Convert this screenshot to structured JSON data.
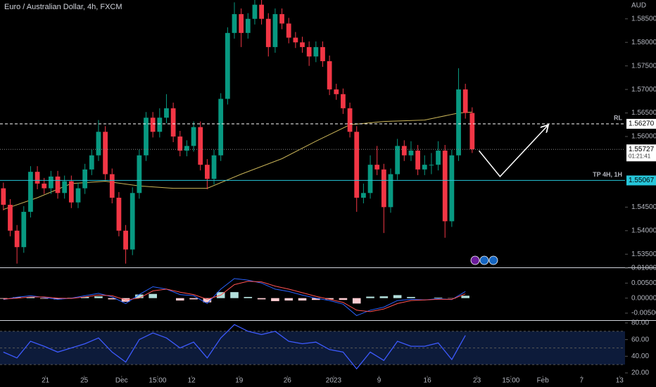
{
  "chart_data": [
    {
      "type": "candlestick",
      "title": "Euro / Australian Dollar, 4h, FXCM",
      "currency": "AUD",
      "up_color": "#089981",
      "down_color": "#f23645",
      "open": [
        1.549,
        1.5455,
        1.54,
        1.5365,
        1.544,
        1.5525,
        1.55,
        1.549,
        1.5515,
        1.548,
        1.5505,
        1.546,
        1.549,
        1.553,
        1.556,
        1.561,
        1.552,
        1.547,
        1.54,
        1.536,
        1.548,
        1.556,
        1.564,
        1.561,
        1.564,
        1.566,
        1.56,
        1.557,
        1.558,
        1.562,
        1.554,
        1.551,
        1.556,
        1.568,
        1.582,
        1.586,
        1.582,
        1.585,
        1.588,
        1.585,
        1.579,
        1.586,
        1.584,
        1.581,
        1.58,
        1.579,
        1.577,
        1.579,
        1.576,
        1.57,
        1.569,
        1.566,
        1.561,
        1.547,
        1.548,
        1.554,
        1.553,
        1.545,
        1.552,
        1.558,
        1.556,
        1.557,
        1.553,
        1.554,
        1.554,
        1.557,
        1.542,
        1.556,
        1.57,
        1.565
      ],
      "high": [
        1.5502,
        1.5467,
        1.5412,
        1.5452,
        1.5537,
        1.5537,
        1.5512,
        1.5527,
        1.5527,
        1.5517,
        1.5517,
        1.5502,
        1.5542,
        1.5572,
        1.5635,
        1.5622,
        1.5532,
        1.5482,
        1.5412,
        1.5492,
        1.5572,
        1.5652,
        1.5652,
        1.566,
        1.569,
        1.5672,
        1.5612,
        1.5592,
        1.5632,
        1.5632,
        1.5552,
        1.5572,
        1.5692,
        1.5832,
        1.5885,
        1.5872,
        1.5862,
        1.5892,
        1.5892,
        1.5862,
        1.5872,
        1.5872,
        1.5852,
        1.5822,
        1.5812,
        1.5802,
        1.5802,
        1.5802,
        1.5772,
        1.5712,
        1.5702,
        1.5672,
        1.5622,
        1.55,
        1.556,
        1.558,
        1.5542,
        1.5532,
        1.5595,
        1.5592,
        1.559,
        1.5582,
        1.556,
        1.5565,
        1.559,
        1.5582,
        1.5572,
        1.5745,
        1.5712,
        1.5662
      ],
      "low": [
        1.5443,
        1.5388,
        1.533,
        1.5353,
        1.5428,
        1.5488,
        1.5478,
        1.5478,
        1.5468,
        1.5468,
        1.5448,
        1.5448,
        1.5478,
        1.5518,
        1.5548,
        1.5508,
        1.5458,
        1.5388,
        1.533,
        1.5348,
        1.5468,
        1.5548,
        1.5598,
        1.5598,
        1.5628,
        1.5588,
        1.5558,
        1.5558,
        1.5568,
        1.5528,
        1.5488,
        1.5498,
        1.5548,
        1.5668,
        1.5808,
        1.579,
        1.5808,
        1.5838,
        1.5838,
        1.577,
        1.5778,
        1.5828,
        1.5798,
        1.5788,
        1.5778,
        1.575,
        1.5758,
        1.5748,
        1.5688,
        1.5678,
        1.5648,
        1.5598,
        1.544,
        1.5458,
        1.5468,
        1.5518,
        1.5395,
        1.5438,
        1.5508,
        1.5548,
        1.5548,
        1.5518,
        1.5518,
        1.552,
        1.5528,
        1.5385,
        1.5408,
        1.5548,
        1.5638,
        1.5565
      ],
      "close": [
        1.5455,
        1.54,
        1.5365,
        1.544,
        1.5525,
        1.55,
        1.549,
        1.5515,
        1.548,
        1.5505,
        1.546,
        1.549,
        1.553,
        1.556,
        1.561,
        1.552,
        1.547,
        1.54,
        1.536,
        1.548,
        1.556,
        1.564,
        1.561,
        1.564,
        1.566,
        1.56,
        1.557,
        1.558,
        1.562,
        1.554,
        1.551,
        1.556,
        1.568,
        1.582,
        1.586,
        1.582,
        1.585,
        1.588,
        1.585,
        1.579,
        1.586,
        1.584,
        1.581,
        1.58,
        1.579,
        1.577,
        1.579,
        1.576,
        1.57,
        1.569,
        1.566,
        1.561,
        1.547,
        1.548,
        1.554,
        1.553,
        1.545,
        1.552,
        1.558,
        1.556,
        1.557,
        1.553,
        1.554,
        1.554,
        1.557,
        1.542,
        1.556,
        1.57,
        1.565,
        1.5573
      ],
      "xlim": [
        -0.5,
        91.5
      ],
      "ylim": [
        1.5322,
        1.589
      ],
      "yticks": [
        {
          "value": 1.585,
          "label": "1.58500"
        },
        {
          "value": 1.58,
          "label": "1.58000"
        },
        {
          "value": 1.575,
          "label": "1.57500"
        },
        {
          "value": 1.57,
          "label": "1.57000"
        },
        {
          "value": 1.565,
          "label": "1.56500"
        },
        {
          "value": 1.56,
          "label": "1.56000"
        },
        {
          "value": 1.545,
          "label": "1.54500"
        },
        {
          "value": 1.54,
          "label": "1.54000"
        },
        {
          "value": 1.535,
          "label": "1.53500"
        }
      ],
      "moving_average": {
        "color": "#c9b458",
        "x": [
          0,
          5,
          10,
          15,
          20,
          25,
          30,
          35,
          41,
          46,
          51,
          56,
          62,
          67,
          69
        ],
        "values": [
          1.5445,
          1.547,
          1.55,
          1.5505,
          1.5495,
          1.549,
          1.549,
          1.552,
          1.5553,
          1.559,
          1.5625,
          1.5632,
          1.5635,
          1.565,
          1.5652
        ]
      },
      "lines": [
        {
          "label": "RL",
          "value": 1.5627,
          "value_label": "1.56270",
          "color": "#ffffff",
          "dashed": true
        },
        {
          "label": "TP 4H, 1H",
          "value": 1.55067,
          "value_label": "1.55067",
          "color": "#26c6da",
          "dashed": false
        }
      ],
      "last_price": {
        "value": 1.55727,
        "value_label": "1.55727",
        "countdown": "01:21:41"
      },
      "projection": {
        "color": "#ffffff",
        "x": [
          70,
          73.1,
          80.1
        ],
        "values": [
          1.557,
          1.5515,
          1.5623
        ]
      }
    },
    {
      "type": "macd",
      "x": [
        0,
        2,
        4,
        6,
        8,
        10,
        12,
        14,
        16,
        18,
        20,
        22,
        24,
        26,
        28,
        30,
        32,
        34,
        36,
        38,
        40,
        42,
        44,
        46,
        48,
        50,
        52,
        54,
        56,
        58,
        60,
        62,
        64,
        66,
        68
      ],
      "series": [
        {
          "color": "#2962ff",
          "values": [
            -0.0005,
            0.0003,
            0.0008,
            0.0002,
            -0.0004,
            0.0,
            0.0008,
            0.0016,
            0.0004,
            -0.0018,
            0.0012,
            0.0038,
            0.003,
            0.0012,
            0.0008,
            -0.0018,
            0.003,
            0.0065,
            0.006,
            0.005,
            0.003,
            0.0022,
            0.001,
            0.0,
            -0.0008,
            -0.002,
            -0.0058,
            -0.004,
            -0.003,
            -0.0008,
            -0.0004,
            -0.0006,
            -0.0002,
            -0.0005,
            0.0022
          ]
        },
        {
          "color": "#ff5252",
          "values": [
            -0.0003,
            0.0,
            0.0004,
            0.0004,
            0.0,
            -0.0001,
            0.0004,
            0.001,
            0.0008,
            -0.0006,
            0.0,
            0.0024,
            0.003,
            0.002,
            0.0012,
            -0.0004,
            0.001,
            0.0045,
            0.0056,
            0.0054,
            0.004,
            0.003,
            0.0018,
            0.0006,
            -0.0004,
            -0.0014,
            -0.004,
            -0.0045,
            -0.0036,
            -0.0018,
            -0.0008,
            -0.0006,
            -0.0004,
            -0.0004,
            0.0014
          ]
        }
      ],
      "histogram": {
        "up_color": "#b2dfdb",
        "down_color": "#ffcdd2",
        "values": [
          -0.0002,
          0.0003,
          0.0004,
          -0.0002,
          -0.0004,
          0.0001,
          0.0004,
          0.0006,
          -0.0004,
          -0.0012,
          0.0012,
          0.0014,
          0.0,
          -0.0008,
          -0.0004,
          -0.0014,
          0.002,
          0.002,
          0.0004,
          -0.0004,
          -0.001,
          -0.0008,
          -0.0008,
          -0.0006,
          -0.0004,
          -0.0006,
          -0.0018,
          0.0005,
          0.0006,
          0.001,
          0.0004,
          0.0,
          0.0002,
          -0.0001,
          0.0008
        ]
      },
      "xlim": [
        -0.5,
        91.5
      ],
      "ylim": [
        -0.0071,
        0.01
      ],
      "yticks": [
        {
          "value": 0.01,
          "label": "0.01000"
        },
        {
          "value": 0.005,
          "label": "0.00500"
        },
        {
          "value": 0,
          "label": "0.00000"
        },
        {
          "value": -0.005,
          "label": "-0.00500"
        }
      ]
    },
    {
      "type": "rsi",
      "color": "#3d5afe",
      "band_color": "#0d1b3a",
      "x": [
        0,
        2,
        4,
        6,
        8,
        10,
        12,
        14,
        16,
        18,
        20,
        22,
        24,
        26,
        28,
        30,
        32,
        34,
        36,
        38,
        40,
        42,
        44,
        46,
        48,
        50,
        52,
        54,
        56,
        58,
        60,
        62,
        64,
        66,
        68
      ],
      "values": [
        45,
        38,
        58,
        52,
        45,
        50,
        55,
        62,
        45,
        33,
        60,
        68,
        62,
        50,
        57,
        38,
        62,
        78,
        70,
        66,
        70,
        58,
        55,
        57,
        48,
        45,
        25,
        45,
        35,
        58,
        52,
        52,
        56,
        36,
        65
      ],
      "levels": [
        70,
        50,
        30
      ],
      "xlim": [
        -0.5,
        91.5
      ],
      "ylim": [
        16.6,
        82.5
      ],
      "yticks": [
        {
          "value": 80,
          "label": "80.00"
        },
        {
          "value": 60,
          "label": "60.00"
        },
        {
          "value": 40,
          "label": "40.00"
        },
        {
          "value": 20,
          "label": "20.00"
        }
      ],
      "xticks": [
        {
          "value": 6.2,
          "label": "21"
        },
        {
          "value": 11.9,
          "label": "25"
        },
        {
          "value": 17.4,
          "label": "Dec"
        },
        {
          "value": 22.7,
          "label": "15:00"
        },
        {
          "value": 27.7,
          "label": "12"
        },
        {
          "value": 34.7,
          "label": "19"
        },
        {
          "value": 41.8,
          "label": "26"
        },
        {
          "value": 48.6,
          "label": "2023"
        },
        {
          "value": 55.3,
          "label": "9"
        },
        {
          "value": 62.4,
          "label": "16"
        },
        {
          "value": 69.7,
          "label": "23"
        },
        {
          "value": 74.7,
          "label": "15:00"
        },
        {
          "value": 79.4,
          "label": "Feb"
        },
        {
          "value": 85.1,
          "label": "7"
        },
        {
          "value": 90.7,
          "label": "13"
        }
      ]
    }
  ]
}
